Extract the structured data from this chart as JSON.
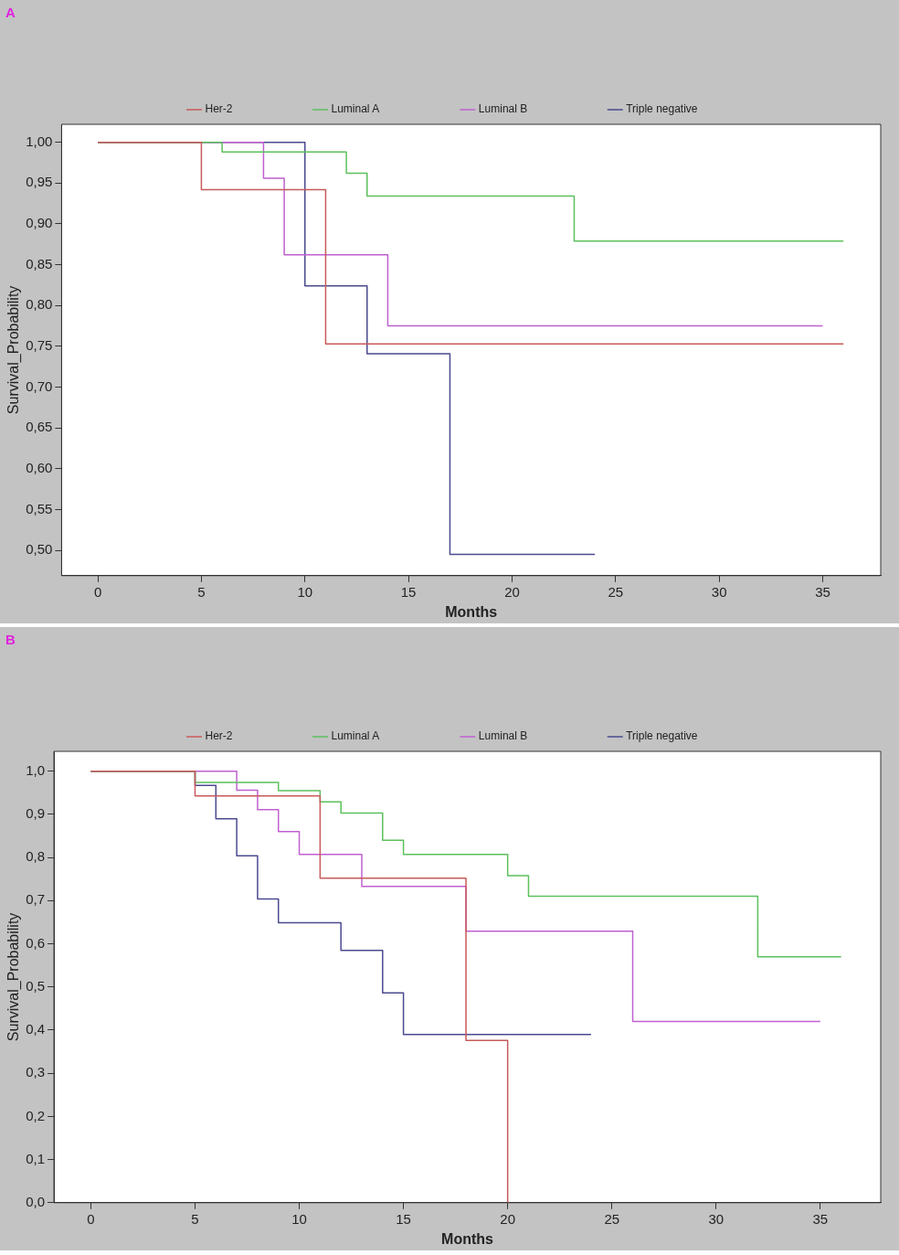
{
  "chart_data": [
    {
      "type": "step",
      "title": "A",
      "xlabel": "Months",
      "ylabel": "Survival_Probability",
      "legend": "top",
      "marker": "none",
      "grid": false,
      "xlim": [
        -1.75,
        37.8
      ],
      "xticks": [
        0,
        5,
        10,
        15,
        20,
        25,
        30,
        35
      ],
      "ylim": [
        0.469,
        1.022
      ],
      "yticks": [
        {
          "value": 0.5,
          "label": "0,50"
        },
        {
          "value": 0.55,
          "label": "0,55"
        },
        {
          "value": 0.6,
          "label": "0,60"
        },
        {
          "value": 0.65,
          "label": "0,65"
        },
        {
          "value": 0.7,
          "label": "0,70"
        },
        {
          "value": 0.75,
          "label": "0,75"
        },
        {
          "value": 0.8,
          "label": "0,80"
        },
        {
          "value": 0.85,
          "label": "0,85"
        },
        {
          "value": 0.9,
          "label": "0,90"
        },
        {
          "value": 0.95,
          "label": "0,95"
        },
        {
          "value": 1.0,
          "label": "1,00"
        }
      ],
      "series": [
        {
          "name": "Her-2",
          "color": "#c85a5a",
          "x": [
            0,
            5,
            11,
            36
          ],
          "values": [
            1.0,
            0.942,
            0.753,
            0.753
          ]
        },
        {
          "name": "Luminal A",
          "color": "#5cc05c",
          "x": [
            0,
            6,
            12,
            13,
            23,
            36
          ],
          "values": [
            1.0,
            0.988,
            0.962,
            0.934,
            0.879,
            0.879
          ]
        },
        {
          "name": "Luminal B",
          "color": "#c060d0",
          "x": [
            0,
            8,
            9,
            14,
            35
          ],
          "values": [
            1.0,
            0.956,
            0.862,
            0.775,
            0.775
          ]
        },
        {
          "name": "Triple negative",
          "color": "#4a4a90",
          "x": [
            0,
            10,
            13,
            17,
            24
          ],
          "values": [
            1.0,
            0.824,
            0.741,
            0.495,
            0.495
          ]
        }
      ]
    },
    {
      "type": "step",
      "title": "B",
      "xlabel": "Months",
      "ylabel": "Survival_Probability",
      "legend": "top",
      "marker": "none",
      "grid": false,
      "xlim": [
        -1.77,
        37.9
      ],
      "xticks": [
        0,
        5,
        10,
        15,
        20,
        25,
        30,
        35
      ],
      "ylim": [
        0,
        1.046
      ],
      "yticks": [
        {
          "value": 0,
          "label": "0,0"
        },
        {
          "value": 0.1,
          "label": "0,1"
        },
        {
          "value": 0.2,
          "label": "0,2"
        },
        {
          "value": 0.3,
          "label": "0,3"
        },
        {
          "value": 0.4,
          "label": "0,4"
        },
        {
          "value": 0.5,
          "label": "0,5"
        },
        {
          "value": 0.6,
          "label": "0,6"
        },
        {
          "value": 0.7,
          "label": "0,7"
        },
        {
          "value": 0.8,
          "label": "0,8"
        },
        {
          "value": 0.9,
          "label": "0,9"
        },
        {
          "value": 1.0,
          "label": "1,0"
        }
      ],
      "series": [
        {
          "name": "Her-2",
          "color": "#c85a5a",
          "x": [
            0,
            5,
            11,
            18,
            20
          ],
          "values": [
            1.0,
            0.943,
            0.752,
            0.376,
            0
          ]
        },
        {
          "name": "Luminal A",
          "color": "#5cc05c",
          "x": [
            0,
            5,
            9,
            11,
            12,
            14,
            15,
            20,
            21,
            32,
            36
          ],
          "values": [
            1.0,
            0.974,
            0.955,
            0.929,
            0.903,
            0.84,
            0.807,
            0.758,
            0.71,
            0.57,
            0.57
          ]
        },
        {
          "name": "Luminal B",
          "color": "#c060d0",
          "x": [
            0,
            7,
            8,
            9,
            10,
            13,
            18,
            26,
            35
          ],
          "values": [
            1.0,
            0.956,
            0.911,
            0.86,
            0.807,
            0.733,
            0.629,
            0.42,
            0.42
          ]
        },
        {
          "name": "Triple negative",
          "color": "#4a4a90",
          "x": [
            0,
            5,
            6,
            7,
            8,
            9,
            12,
            14,
            15,
            24
          ],
          "values": [
            1.0,
            0.967,
            0.89,
            0.804,
            0.704,
            0.649,
            0.585,
            0.486,
            0.39,
            0.39
          ]
        }
      ]
    }
  ]
}
